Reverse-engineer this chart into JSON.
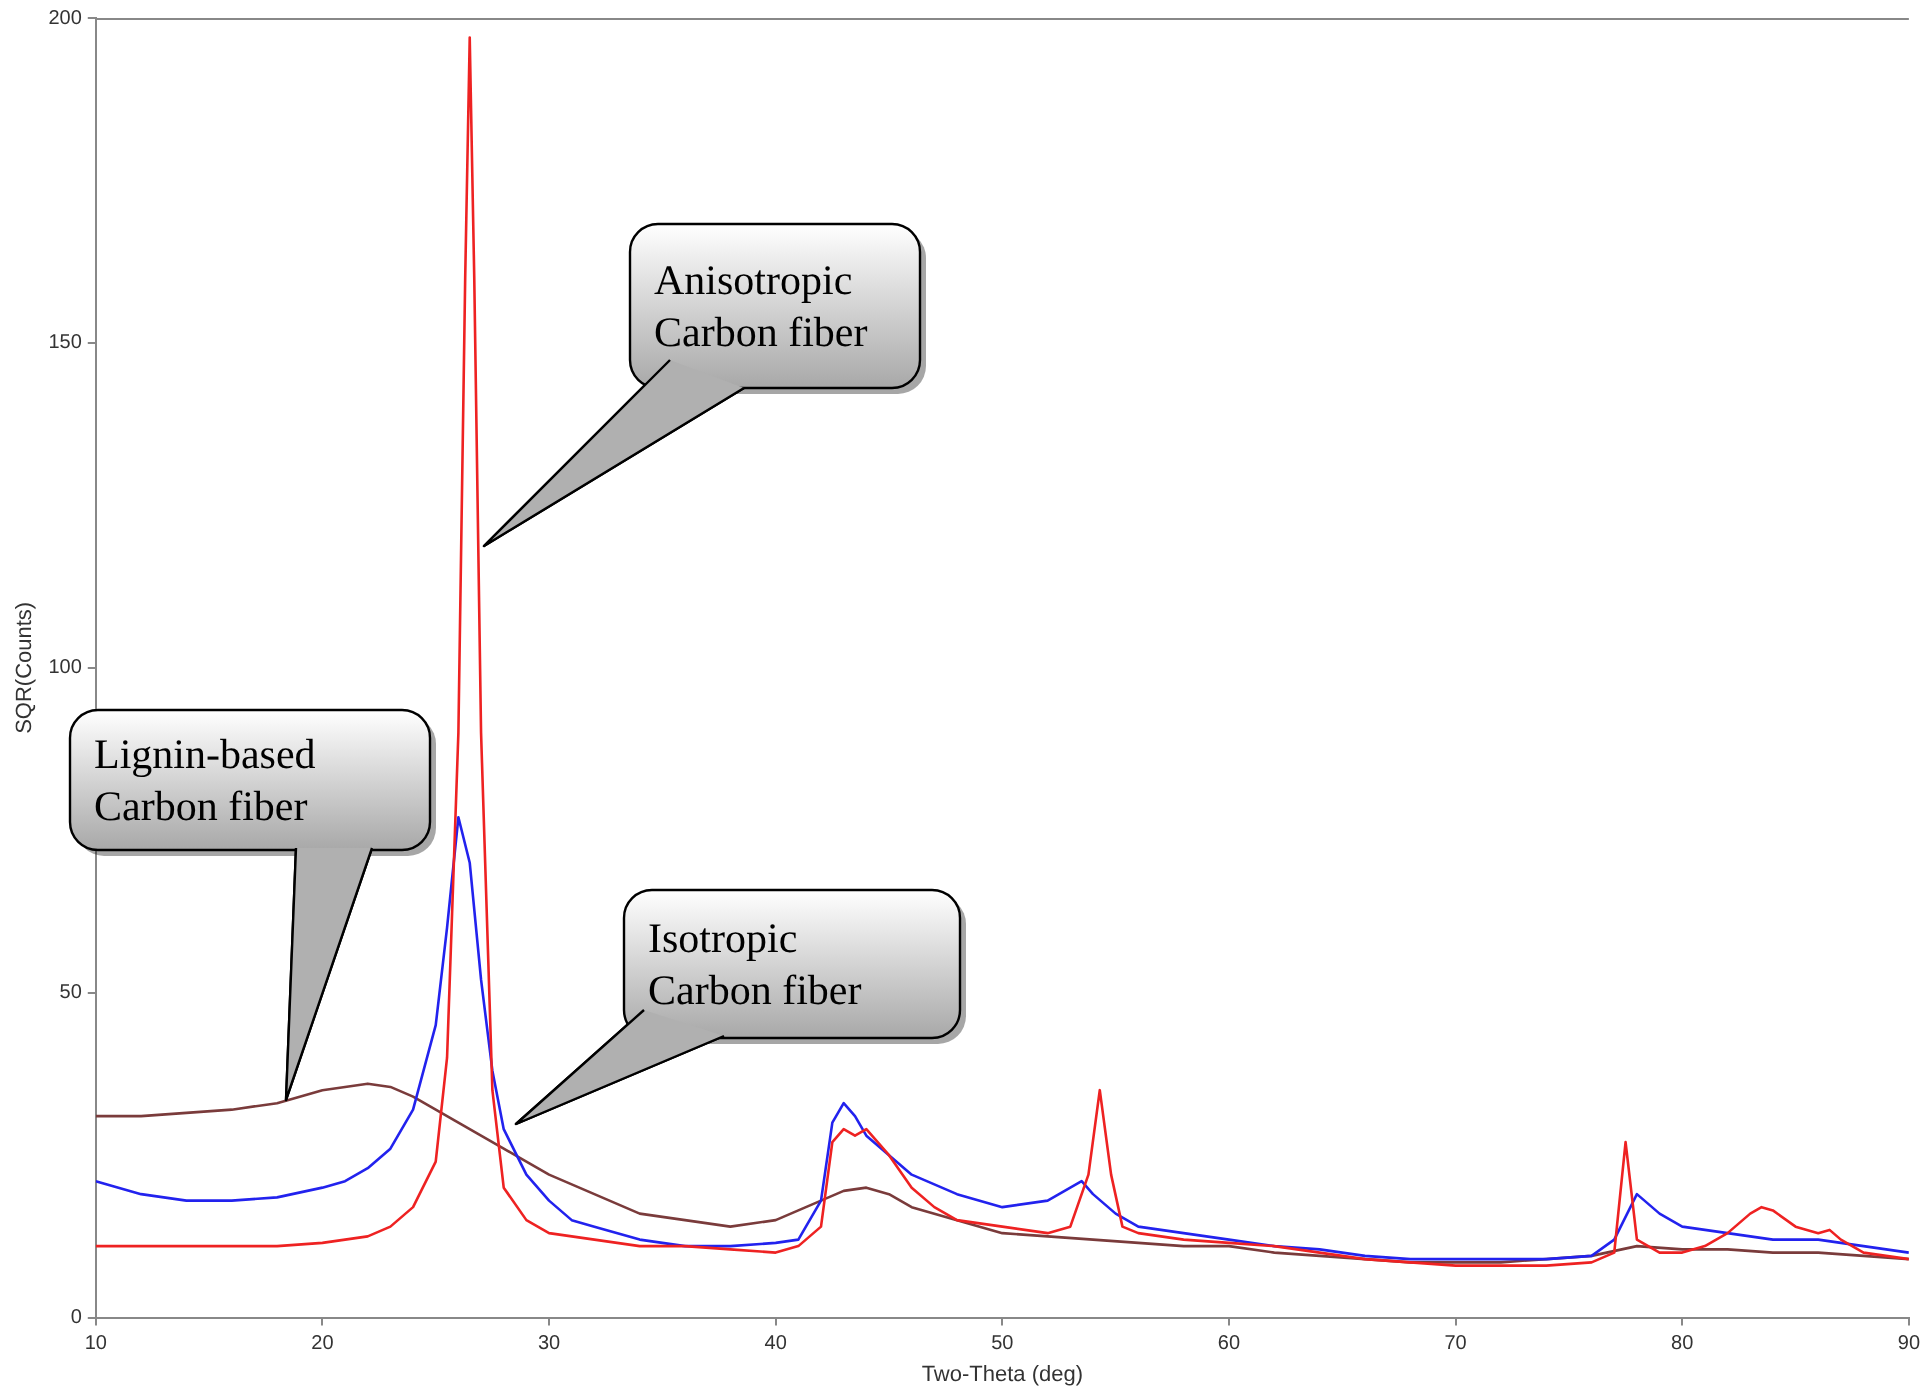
{
  "chart_data": {
    "type": "line",
    "xlabel": "Two-Theta (deg)",
    "ylabel": "SQR(Counts)",
    "xlim": [
      10,
      90
    ],
    "xticks": [
      10,
      20,
      30,
      40,
      50,
      60,
      70,
      80,
      90
    ],
    "ylim": [
      0,
      200
    ],
    "yticks": [
      0,
      50,
      100,
      150,
      200
    ],
    "grid": false,
    "legend": false,
    "series": [
      {
        "color": "#ee2222",
        "x": [
          10,
          12,
          14,
          16,
          18,
          20,
          21,
          22,
          23,
          24,
          25,
          25.5,
          26,
          26.3,
          26.5,
          26.7,
          27,
          27.5,
          28,
          29,
          30,
          32,
          34,
          36,
          38,
          40,
          41,
          42,
          42.5,
          43,
          43.5,
          44,
          45,
          46,
          47,
          48,
          50,
          52,
          53,
          53.8,
          54.3,
          54.8,
          55.3,
          56,
          58,
          60,
          62,
          64,
          66,
          68,
          70,
          72,
          74,
          76,
          77,
          77.5,
          78,
          79,
          80,
          81,
          82,
          83,
          83.5,
          84,
          85,
          86,
          86.5,
          87,
          88,
          90
        ],
        "values": [
          11,
          11,
          11,
          11,
          11,
          11.5,
          12,
          12.5,
          14,
          17,
          24,
          40,
          90,
          160,
          197,
          160,
          90,
          35,
          20,
          15,
          13,
          12,
          11,
          11,
          10.5,
          10,
          11,
          14,
          27,
          29,
          28,
          29,
          25,
          20,
          17,
          15,
          14,
          13,
          14,
          22,
          35,
          22,
          14,
          13,
          12,
          11.5,
          11,
          10,
          9,
          8.5,
          8,
          8,
          8,
          8.5,
          10,
          27,
          12,
          10,
          10,
          11,
          13,
          16,
          17,
          16.5,
          14,
          13,
          13.5,
          12,
          10,
          9
        ]
      },
      {
        "color": "#2222ee",
        "x": [
          10,
          11,
          12,
          14,
          16,
          18,
          20,
          21,
          22,
          23,
          24,
          25,
          25.5,
          26,
          26.5,
          27,
          27.5,
          28,
          29,
          30,
          31,
          32,
          34,
          36,
          38,
          40,
          41,
          42,
          42.5,
          43,
          43.5,
          44,
          45,
          46,
          48,
          50,
          52,
          53,
          53.5,
          54,
          55,
          56,
          58,
          60,
          62,
          64,
          66,
          68,
          70,
          72,
          74,
          76,
          77,
          78,
          79,
          80,
          82,
          84,
          86,
          88,
          90
        ],
        "values": [
          21,
          20,
          19,
          18,
          18,
          18.5,
          20,
          21,
          23,
          26,
          32,
          45,
          60,
          77,
          70,
          52,
          38,
          29,
          22,
          18,
          15,
          14,
          12,
          11,
          11,
          11.5,
          12,
          18,
          30,
          33,
          31,
          28,
          25,
          22,
          19,
          17,
          18,
          20,
          21,
          19,
          16,
          14,
          13,
          12,
          11,
          10.5,
          9.5,
          9,
          9,
          9,
          9,
          9.5,
          12,
          19,
          16,
          14,
          13,
          12,
          12,
          11,
          10
        ]
      },
      {
        "color": "#7a3b3b",
        "x": [
          10,
          12,
          14,
          16,
          18,
          20,
          22,
          23,
          24,
          25,
          26,
          27,
          28,
          29,
          30,
          32,
          34,
          36,
          38,
          40,
          41,
          42,
          43,
          44,
          45,
          46,
          48,
          50,
          52,
          54,
          56,
          58,
          60,
          62,
          64,
          66,
          68,
          70,
          72,
          74,
          76,
          78,
          80,
          82,
          84,
          86,
          88,
          90
        ],
        "values": [
          31,
          31,
          31.5,
          32,
          33,
          35,
          36,
          35.5,
          34,
          32,
          30,
          28,
          26,
          24,
          22,
          19,
          16,
          15,
          14,
          15,
          16.5,
          18,
          19.5,
          20,
          19,
          17,
          15,
          13,
          12.5,
          12,
          11.5,
          11,
          11,
          10,
          9.5,
          9,
          8.5,
          8.5,
          8.5,
          9,
          9.5,
          11,
          10.5,
          10.5,
          10,
          10,
          9.5,
          9
        ]
      }
    ],
    "annotations": [
      "Anisotropic Carbon fiber",
      "Lignin-based Carbon fiber",
      "Isotropic Carbon fiber"
    ]
  }
}
